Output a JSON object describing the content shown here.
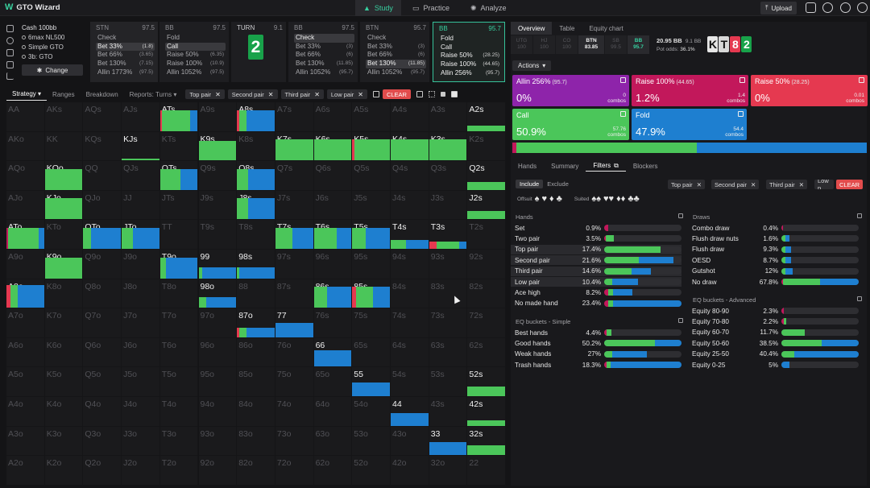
{
  "app": {
    "title": "GTO Wizard",
    "nav": [
      {
        "label": "Study"
      },
      {
        "label": "Practice"
      },
      {
        "label": "Analyze"
      }
    ],
    "upload": "Upload"
  },
  "game": {
    "title": "Cash  100bb",
    "lines": [
      "6max NL500",
      "Simple GTO",
      "3b: GTO"
    ],
    "change": "Change"
  },
  "history": [
    {
      "pos": "STN",
      "stack": "97.5",
      "rows": [
        {
          "a": "Check",
          "v": ""
        },
        {
          "a": "Bet 33%",
          "v": "(1.8)",
          "hl": true
        },
        {
          "a": "Bet 66%",
          "v": "(3.65)"
        },
        {
          "a": "Bet 130%",
          "v": "(7.15)"
        },
        {
          "a": "Allin 1773%",
          "v": "(97.5)"
        }
      ]
    },
    {
      "pos": "BB",
      "stack": "97.5",
      "rows": [
        {
          "a": "Fold",
          "v": ""
        },
        {
          "a": "Call",
          "v": "",
          "hl": true
        },
        {
          "a": "Raise 50%",
          "v": "(6.35)"
        },
        {
          "a": "Raise 100%",
          "v": "(10.9)"
        },
        {
          "a": "Allin 1052%",
          "v": "(97.5)"
        }
      ]
    },
    {
      "pos": "TURN",
      "stack": "9.1",
      "card": "2"
    },
    {
      "pos": "BB",
      "stack": "97.5",
      "rows": [
        {
          "a": "Check",
          "v": "",
          "hl": true
        },
        {
          "a": "Bet 33%",
          "v": "(3)"
        },
        {
          "a": "Bet 66%",
          "v": "(6)"
        },
        {
          "a": "Bet 130%",
          "v": "(11.85)"
        },
        {
          "a": "Allin 1052%",
          "v": "(95.7)"
        }
      ]
    },
    {
      "pos": "BTN",
      "stack": "95.7",
      "rows": [
        {
          "a": "Check",
          "v": ""
        },
        {
          "a": "Bet 33%",
          "v": "(3)"
        },
        {
          "a": "Bet 66%",
          "v": "(6)"
        },
        {
          "a": "Bet 130%",
          "v": "(11.85)",
          "hl": true
        },
        {
          "a": "Allin 1052%",
          "v": "(95.7)"
        }
      ]
    },
    {
      "pos": "BB",
      "stack": "95.7",
      "sel": true,
      "rows": [
        {
          "a": "Fold",
          "v": ""
        },
        {
          "a": "Call",
          "v": ""
        },
        {
          "a": "Raise 50%",
          "v": "(28.25)"
        },
        {
          "a": "Raise 100%",
          "v": "(44.65)"
        },
        {
          "a": "Allin 256%",
          "v": "(95.7)"
        }
      ]
    }
  ],
  "strategy_tabs": [
    "Strategy",
    "Ranges",
    "Breakdown",
    "Reports: Turns"
  ],
  "filter_chips": [
    "Top pair",
    "Second pair",
    "Third pair",
    "Low pair"
  ],
  "clear": "CLEAR",
  "colors": {
    "allin": "#8e24aa",
    "raise100": "#c2185b",
    "raise50": "#e53950",
    "call": "#4bc65a",
    "fold": "#1e7fd0",
    "accent": "#37d0a0"
  },
  "grid": [
    [
      "AA",
      "AKs",
      "AQs",
      "AJs",
      "ATs",
      "A9s",
      "A8s",
      "A7s",
      "A6s",
      "A5s",
      "A4s",
      "A3s",
      "A2s"
    ],
    [
      "AKo",
      "KK",
      "KQs",
      "KJs",
      "KTs",
      "K9s",
      "K8s",
      "K7s",
      "K6s",
      "K5s",
      "K4s",
      "K3s",
      "K2s"
    ],
    [
      "AQo",
      "KQo",
      "QQ",
      "QJs",
      "QTs",
      "Q9s",
      "Q8s",
      "Q7s",
      "Q6s",
      "Q5s",
      "Q4s",
      "Q3s",
      "Q2s"
    ],
    [
      "AJo",
      "KJo",
      "QJo",
      "JJ",
      "JTs",
      "J9s",
      "J8s",
      "J7s",
      "J6s",
      "J5s",
      "J4s",
      "J3s",
      "J2s"
    ],
    [
      "ATo",
      "KTo",
      "QTo",
      "JTo",
      "TT",
      "T9s",
      "T8s",
      "T7s",
      "T6s",
      "T5s",
      "T4s",
      "T3s",
      "T2s"
    ],
    [
      "A9o",
      "K9o",
      "Q9o",
      "J9o",
      "T9o",
      "99",
      "98s",
      "97s",
      "96s",
      "95s",
      "94s",
      "93s",
      "92s"
    ],
    [
      "A8o",
      "K8o",
      "Q8o",
      "J8o",
      "T8o",
      "98o",
      "88",
      "87s",
      "86s",
      "85s",
      "84s",
      "83s",
      "82s"
    ],
    [
      "A7o",
      "K7o",
      "Q7o",
      "J7o",
      "T7o",
      "97o",
      "87o",
      "77",
      "76s",
      "75s",
      "74s",
      "73s",
      "72s"
    ],
    [
      "A6o",
      "K6o",
      "Q6o",
      "J6o",
      "T6o",
      "96o",
      "86o",
      "76o",
      "66",
      "65s",
      "64s",
      "63s",
      "62s"
    ],
    [
      "A5o",
      "K5o",
      "Q5o",
      "J5o",
      "T5o",
      "95o",
      "85o",
      "75o",
      "65o",
      "55",
      "54s",
      "53s",
      "52s"
    ],
    [
      "A4o",
      "K4o",
      "Q4o",
      "J4o",
      "T4o",
      "94o",
      "84o",
      "74o",
      "64o",
      "54o",
      "44",
      "43s",
      "42s"
    ],
    [
      "A3o",
      "K3o",
      "Q3o",
      "J3o",
      "T3o",
      "93o",
      "83o",
      "73o",
      "63o",
      "53o",
      "43o",
      "33",
      "32s"
    ],
    [
      "A2o",
      "K2o",
      "Q2o",
      "J2o",
      "T2o",
      "92o",
      "82o",
      "72o",
      "62o",
      "52o",
      "42o",
      "32o",
      "22"
    ]
  ],
  "live_cells": {
    "ATs": [
      [
        0.05,
        "raise50"
      ],
      [
        0.75,
        "call"
      ],
      [
        0.2,
        "fold"
      ]
    ],
    "A8s": [
      [
        0.05,
        "raise50"
      ],
      [
        0.2,
        "call"
      ],
      [
        0.75,
        "fold"
      ]
    ],
    "A2s": [
      [
        1,
        "call"
      ]
    ],
    "K9s": [
      [
        1,
        "call"
      ]
    ],
    "K7s": [
      [
        1,
        "call"
      ]
    ],
    "K6s": [
      [
        1,
        "call"
      ]
    ],
    "K5s": [
      [
        0.05,
        "raise50"
      ],
      [
        0.95,
        "call"
      ]
    ],
    "K4s": [
      [
        1,
        "call"
      ]
    ],
    "K3s": [
      [
        1,
        "call"
      ]
    ],
    "KJs": [
      [
        1,
        "call"
      ]
    ],
    "KQo": [
      [
        1,
        "call"
      ]
    ],
    "QTs": [
      [
        0.55,
        "call"
      ],
      [
        0.45,
        "fold"
      ]
    ],
    "Q8s": [
      [
        0.3,
        "call"
      ],
      [
        0.7,
        "fold"
      ]
    ],
    "Q2s": [
      [
        1,
        "call"
      ]
    ],
    "KJo": [
      [
        1,
        "call"
      ]
    ],
    "J8s": [
      [
        0.3,
        "call"
      ],
      [
        0.7,
        "fold"
      ]
    ],
    "J2s": [
      [
        1,
        "call"
      ]
    ],
    "ATo": [
      [
        0.05,
        "raise100"
      ],
      [
        0.8,
        "call"
      ],
      [
        0.15,
        "fold"
      ]
    ],
    "QTo": [
      [
        0.2,
        "call"
      ],
      [
        0.8,
        "fold"
      ]
    ],
    "JTo": [
      [
        0.3,
        "call"
      ],
      [
        0.7,
        "fold"
      ]
    ],
    "T7s": [
      [
        0.45,
        "call"
      ],
      [
        0.55,
        "fold"
      ]
    ],
    "T6s": [
      [
        0.6,
        "call"
      ],
      [
        0.4,
        "fold"
      ]
    ],
    "T5s": [
      [
        0.35,
        "call"
      ],
      [
        0.65,
        "fold"
      ]
    ],
    "T4s": [
      [
        0.4,
        "call"
      ],
      [
        0.6,
        "fold"
      ]
    ],
    "T3s": [
      [
        0.2,
        "raise50"
      ],
      [
        0.6,
        "call"
      ],
      [
        0.2,
        "fold"
      ]
    ],
    "K9o": [
      [
        1,
        "call"
      ]
    ],
    "T9o": [
      [
        0.15,
        "call"
      ],
      [
        0.85,
        "fold"
      ]
    ],
    "99": [
      [
        0.1,
        "call"
      ],
      [
        0.9,
        "fold"
      ]
    ],
    "98s": [
      [
        0.05,
        "call"
      ],
      [
        0.95,
        "fold"
      ]
    ],
    "A8o": [
      [
        0.1,
        "raise50"
      ],
      [
        0.2,
        "call"
      ],
      [
        0.7,
        "fold"
      ]
    ],
    "98o": [
      [
        0.2,
        "call"
      ],
      [
        0.8,
        "fold"
      ]
    ],
    "86s": [
      [
        0.35,
        "call"
      ],
      [
        0.65,
        "fold"
      ]
    ],
    "85s": [
      [
        0.1,
        "raise50"
      ],
      [
        0.45,
        "call"
      ],
      [
        0.45,
        "fold"
      ]
    ],
    "87o": [
      [
        0.05,
        "raise50"
      ],
      [
        0.2,
        "call"
      ],
      [
        0.75,
        "fold"
      ]
    ],
    "77": [
      [
        1,
        "fold"
      ]
    ],
    "66": [
      [
        1,
        "fold"
      ]
    ],
    "55": [
      [
        1,
        "fold"
      ]
    ],
    "52s": [
      [
        1,
        "call"
      ]
    ],
    "44": [
      [
        1,
        "fold"
      ]
    ],
    "42s": [
      [
        1,
        "call"
      ]
    ],
    "33": [
      [
        1,
        "fold"
      ]
    ],
    "32s": [
      [
        1,
        "call"
      ]
    ]
  },
  "right": {
    "tabs": [
      "Overview",
      "Table",
      "Equity chart"
    ],
    "positions": [
      {
        "p": "UTG",
        "s": "100"
      },
      {
        "p": "HJ",
        "s": "100"
      },
      {
        "p": "CO",
        "s": "100"
      },
      {
        "p": "BTN",
        "s": "83.85",
        "me": true
      },
      {
        "p": "SB",
        "s": "99.5"
      },
      {
        "p": "BB",
        "s": "95.7",
        "bb": true
      }
    ],
    "pot": {
      "main": "20.95 BB",
      "sub": "9.1 BB",
      "odds_label": "Pot odds:",
      "odds": "36.1%"
    },
    "board": [
      {
        "r": "K",
        "bg": "#e6e6e6",
        "fg": "#111"
      },
      {
        "r": "T",
        "bg": "#d8d8d8",
        "fg": "#111"
      },
      {
        "r": "8",
        "bg": "#e53950",
        "fg": "#fff"
      },
      {
        "r": "2",
        "bg": "#18a24a",
        "fg": "#fff"
      }
    ],
    "actions_label": "Actions",
    "action_boxes": [
      {
        "name": "Allin 256%",
        "size": "(95.7)",
        "pct": "0%",
        "combos": "0",
        "color": "allin"
      },
      {
        "name": "Raise 100%",
        "size": "(44.65)",
        "pct": "1.2%",
        "combos": "1.4",
        "color": "raise100"
      },
      {
        "name": "Raise 50%",
        "size": "(28.25)",
        "pct": "0%",
        "combos": "0.01",
        "color": "raise50"
      },
      {
        "name": "Call",
        "size": "",
        "pct": "50.9%",
        "combos": "57.76",
        "color": "call"
      },
      {
        "name": "Fold",
        "size": "",
        "pct": "47.9%",
        "combos": "54.4",
        "color": "fold"
      }
    ],
    "combos_label": "combos",
    "summary_bar": [
      [
        0.012,
        "raise100"
      ],
      [
        0.509,
        "call"
      ],
      [
        0.479,
        "fold"
      ]
    ],
    "sub_tabs": [
      "Hands",
      "Summary",
      "Filters",
      "Blockers"
    ],
    "include": [
      "Include",
      "Exclude"
    ],
    "offsuit_label": "Offsuit",
    "suited_label": "Suited",
    "fchips": [
      "Top pair",
      "Second pair",
      "Third pair",
      "Low p"
    ],
    "hands_title": "Hands",
    "hands": [
      {
        "n": "Set",
        "p": "0.9%",
        "b": [
          [
            0.05,
            "raise100"
          ]
        ],
        "hl": false
      },
      {
        "n": "Two pair",
        "p": "3.5%",
        "b": [
          [
            0.02,
            "raise100"
          ],
          [
            0.1,
            "call"
          ]
        ],
        "hl": false
      },
      {
        "n": "Top pair",
        "p": "17.4%",
        "b": [
          [
            0.73,
            "call"
          ]
        ],
        "hl": true
      },
      {
        "n": "Second pair",
        "p": "21.6%",
        "b": [
          [
            0.45,
            "call"
          ],
          [
            0.45,
            "fold"
          ]
        ],
        "hl": true
      },
      {
        "n": "Third pair",
        "p": "14.6%",
        "b": [
          [
            0.35,
            "call"
          ],
          [
            0.25,
            "fold"
          ]
        ],
        "hl": true
      },
      {
        "n": "Low pair",
        "p": "10.4%",
        "b": [
          [
            0.1,
            "call"
          ],
          [
            0.34,
            "fold"
          ]
        ],
        "hl": true
      },
      {
        "n": "Ace high",
        "p": "8.2%",
        "b": [
          [
            0.05,
            "raise100"
          ],
          [
            0.06,
            "call"
          ],
          [
            0.25,
            "fold"
          ]
        ],
        "hl": false
      },
      {
        "n": "No made hand",
        "p": "23.4%",
        "b": [
          [
            0.05,
            "raise100"
          ],
          [
            0.06,
            "call"
          ],
          [
            0.89,
            "fold"
          ]
        ],
        "hl": false
      }
    ],
    "draws_title": "Draws",
    "draws": [
      {
        "n": "Combo draw",
        "p": "0.4%",
        "b": [
          [
            0.02,
            "raise100"
          ]
        ]
      },
      {
        "n": "Flush draw nuts",
        "p": "1.6%",
        "b": [
          [
            0.05,
            "call"
          ],
          [
            0.05,
            "fold"
          ]
        ]
      },
      {
        "n": "Flush draw",
        "p": "9.3%",
        "b": [
          [
            0.05,
            "call"
          ],
          [
            0.08,
            "fold"
          ]
        ]
      },
      {
        "n": "OESD",
        "p": "8.7%",
        "b": [
          [
            0.05,
            "call"
          ],
          [
            0.08,
            "fold"
          ]
        ]
      },
      {
        "n": "Gutshot",
        "p": "12%",
        "b": [
          [
            0.05,
            "call"
          ],
          [
            0.1,
            "fold"
          ]
        ]
      },
      {
        "n": "No draw",
        "p": "67.8%",
        "b": [
          [
            0.02,
            "raise100"
          ],
          [
            0.48,
            "call"
          ],
          [
            0.5,
            "fold"
          ]
        ]
      }
    ],
    "eq_simple_title": "EQ buckets - Simple",
    "eq_simple": [
      {
        "n": "Best hands",
        "p": "4.4%",
        "b": [
          [
            0.03,
            "raise100"
          ],
          [
            0.06,
            "call"
          ]
        ]
      },
      {
        "n": "Good hands",
        "p": "50.2%",
        "b": [
          [
            0.66,
            "call"
          ],
          [
            0.34,
            "fold"
          ]
        ]
      },
      {
        "n": "Weak hands",
        "p": "27%",
        "b": [
          [
            0.1,
            "call"
          ],
          [
            0.45,
            "fold"
          ]
        ]
      },
      {
        "n": "Trash hands",
        "p": "18.3%",
        "b": [
          [
            0.03,
            "raise100"
          ],
          [
            0.05,
            "call"
          ],
          [
            0.92,
            "fold"
          ]
        ]
      }
    ],
    "eq_adv_title": "EQ buckets - Advanced",
    "eq_adv": [
      {
        "n": "Equity 80-90",
        "p": "2.3%",
        "b": [
          [
            0.03,
            "raise100"
          ]
        ]
      },
      {
        "n": "Equity 70-80",
        "p": "2.2%",
        "b": [
          [
            0.03,
            "raise100"
          ],
          [
            0.03,
            "call"
          ]
        ]
      },
      {
        "n": "Equity 60-70",
        "p": "11.7%",
        "b": [
          [
            0.3,
            "call"
          ]
        ]
      },
      {
        "n": "Equity 50-60",
        "p": "38.5%",
        "b": [
          [
            0.52,
            "call"
          ],
          [
            0.48,
            "fold"
          ]
        ]
      },
      {
        "n": "Equity 25-50",
        "p": "40.4%",
        "b": [
          [
            0.17,
            "call"
          ],
          [
            0.83,
            "fold"
          ]
        ]
      },
      {
        "n": "Equity 0-25",
        "p": "5%",
        "b": [
          [
            0.1,
            "fold"
          ]
        ]
      }
    ]
  }
}
